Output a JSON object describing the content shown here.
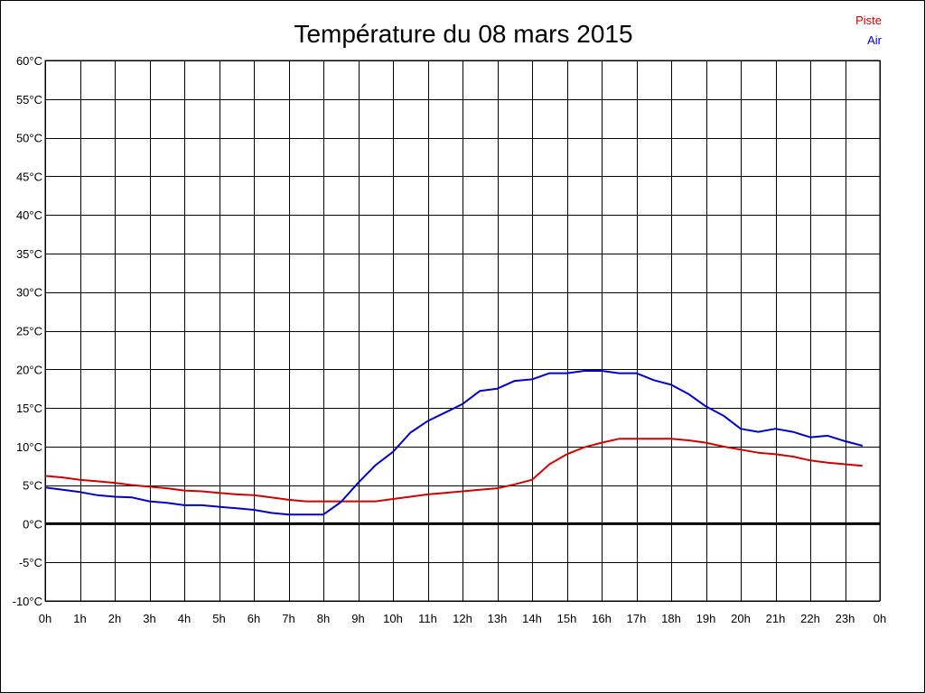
{
  "chart_data": {
    "type": "line",
    "title": "Température du 08 mars 2015",
    "xlabel": "",
    "ylabel": "",
    "x_ticks": [
      "0h",
      "1h",
      "2h",
      "3h",
      "4h",
      "5h",
      "6h",
      "7h",
      "8h",
      "9h",
      "10h",
      "11h",
      "12h",
      "13h",
      "14h",
      "15h",
      "16h",
      "17h",
      "18h",
      "19h",
      "20h",
      "21h",
      "22h",
      "23h",
      "0h"
    ],
    "y_ticks": [
      "60°C",
      "55°C",
      "50°C",
      "45°C",
      "40°C",
      "35°C",
      "30°C",
      "25°C",
      "20°C",
      "15°C",
      "10°C",
      "5°C",
      "0°C",
      "-5°C",
      "-10°C"
    ],
    "xlim": [
      0,
      24
    ],
    "ylim": [
      -10,
      60
    ],
    "grid": true,
    "zero_line": true,
    "legend": "top-right",
    "series": [
      {
        "name": "Piste",
        "color": "#d00000",
        "x": [
          0,
          0.5,
          1,
          1.5,
          2,
          2.5,
          3,
          3.5,
          4,
          4.5,
          5,
          5.5,
          6,
          6.5,
          7,
          7.5,
          8,
          8.5,
          9,
          9.5,
          10,
          10.5,
          11,
          11.5,
          12,
          12.5,
          13,
          13.5,
          14,
          14.5,
          15,
          15.5,
          16,
          16.5,
          17,
          17.5,
          18,
          18.5,
          19,
          19.5,
          20,
          20.5,
          21,
          21.5,
          22,
          22.5,
          23,
          23.5
        ],
        "y": [
          6.2,
          6.0,
          5.7,
          5.5,
          5.3,
          5.0,
          4.8,
          4.6,
          4.3,
          4.2,
          4.0,
          3.8,
          3.7,
          3.4,
          3.1,
          2.9,
          2.9,
          2.9,
          2.9,
          2.9,
          3.2,
          3.5,
          3.8,
          4.0,
          4.2,
          4.4,
          4.6,
          5.1,
          5.7,
          7.7,
          9.0,
          9.9,
          10.5,
          11.0,
          11.0,
          11.0,
          11.0,
          10.8,
          10.5,
          10.0,
          9.6,
          9.2,
          9.0,
          8.7,
          8.2,
          7.9,
          7.7,
          7.5
        ]
      },
      {
        "name": "Air",
        "color": "#0000c8",
        "x": [
          0,
          0.5,
          1,
          1.5,
          2,
          2.5,
          3,
          3.5,
          4,
          4.5,
          5,
          5.5,
          6,
          6.5,
          7,
          7.5,
          8,
          8.5,
          9,
          9.5,
          10,
          10.5,
          11,
          11.5,
          12,
          12.5,
          13,
          13.5,
          14,
          14.5,
          15,
          15.5,
          16,
          16.5,
          17,
          17.5,
          18,
          18.5,
          19,
          19.5,
          20,
          20.5,
          21,
          21.5,
          22,
          22.5,
          23,
          23.5
        ],
        "y": [
          4.7,
          4.4,
          4.1,
          3.7,
          3.5,
          3.4,
          2.9,
          2.7,
          2.4,
          2.4,
          2.2,
          2.0,
          1.8,
          1.4,
          1.2,
          1.2,
          1.2,
          2.8,
          5.3,
          7.6,
          9.3,
          11.8,
          13.3,
          14.4,
          15.5,
          17.2,
          17.5,
          18.5,
          18.7,
          19.5,
          19.5,
          19.8,
          19.8,
          19.5,
          19.5,
          18.6,
          18.0,
          16.8,
          15.2,
          14.0,
          12.3,
          11.9,
          12.3,
          11.9,
          11.2,
          11.4,
          10.7,
          10.1
        ]
      }
    ]
  }
}
